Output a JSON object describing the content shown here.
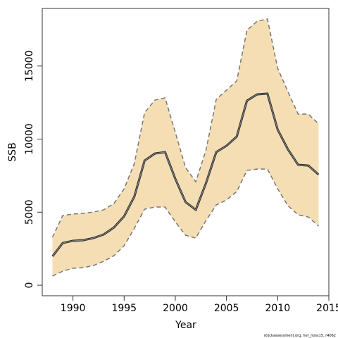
{
  "chart_data": {
    "type": "line",
    "xlabel": "Year",
    "ylabel": "SSB",
    "note": "stockassessment.org, her_noss15, r4062",
    "x": [
      1988,
      1989,
      1990,
      1991,
      1992,
      1993,
      1994,
      1995,
      1996,
      1997,
      1998,
      1999,
      2000,
      2001,
      2002,
      2003,
      2004,
      2005,
      2006,
      2007,
      2008,
      2009,
      2010,
      2011,
      2012,
      2013,
      2014
    ],
    "values": [
      1976,
      2890,
      3040,
      3080,
      3230,
      3470,
      3950,
      4720,
      6070,
      8530,
      9010,
      9110,
      7280,
      5690,
      5160,
      6990,
      9110,
      9540,
      10170,
      12630,
      13060,
      13110,
      10650,
      9300,
      8240,
      8190,
      7570
    ],
    "upper": [
      3280,
      4770,
      4870,
      4920,
      5010,
      5160,
      5590,
      6600,
      8340,
      11810,
      12670,
      12820,
      10460,
      8050,
      7080,
      9250,
      12720,
      13350,
      13980,
      17450,
      18070,
      18220,
      14840,
      13250,
      11710,
      11710,
      11040
    ],
    "lower": [
      630,
      960,
      1160,
      1200,
      1350,
      1640,
      2020,
      2700,
      3900,
      5200,
      5350,
      5350,
      4340,
      3420,
      3230,
      4430,
      5490,
      5830,
      6410,
      7860,
      7950,
      7950,
      6600,
      5440,
      4820,
      4670,
      4050
    ],
    "color": "#333333",
    "band_color": "#f5deb3",
    "bound_color": "#777777",
    "xlim": [
      1987,
      2015
    ],
    "ylim": [
      -720,
      18940
    ],
    "xticks": [
      1990,
      1995,
      2000,
      2005,
      2010,
      2015
    ],
    "yticks": [
      0,
      5000,
      10000,
      15000
    ]
  }
}
